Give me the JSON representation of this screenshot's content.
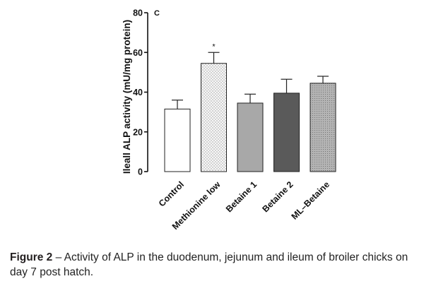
{
  "chart_data": {
    "type": "bar",
    "panel_label": "C",
    "ylabel": "Ileall ALP activity (mU/mg protein)",
    "xlabel": "",
    "ylim": [
      0,
      80
    ],
    "yticks": [
      "0",
      "20",
      "40",
      "60",
      "80"
    ],
    "categories": [
      "Control",
      "Methionine low",
      "Betaine 1",
      "Betaine 2",
      "ML–Betaine"
    ],
    "values": [
      31.5,
      54.5,
      34.5,
      39.5,
      44.5
    ],
    "errors": [
      4.5,
      5.5,
      4.5,
      7.0,
      3.5
    ],
    "significance": [
      "",
      "*",
      "",
      "",
      ""
    ],
    "colors": [
      "#ffffff",
      "#f4f4f4",
      "#a8a8a8",
      "#5a5a5a",
      "#bdbdbd"
    ],
    "patterns": [
      "none",
      "dots",
      "none",
      "none",
      "dots"
    ],
    "grid": false
  },
  "caption": {
    "label": "Figure 2",
    "text": " – Activity of ALP in the duodenum, jejunum and ileum of broiler chicks on day 7 post hatch."
  }
}
